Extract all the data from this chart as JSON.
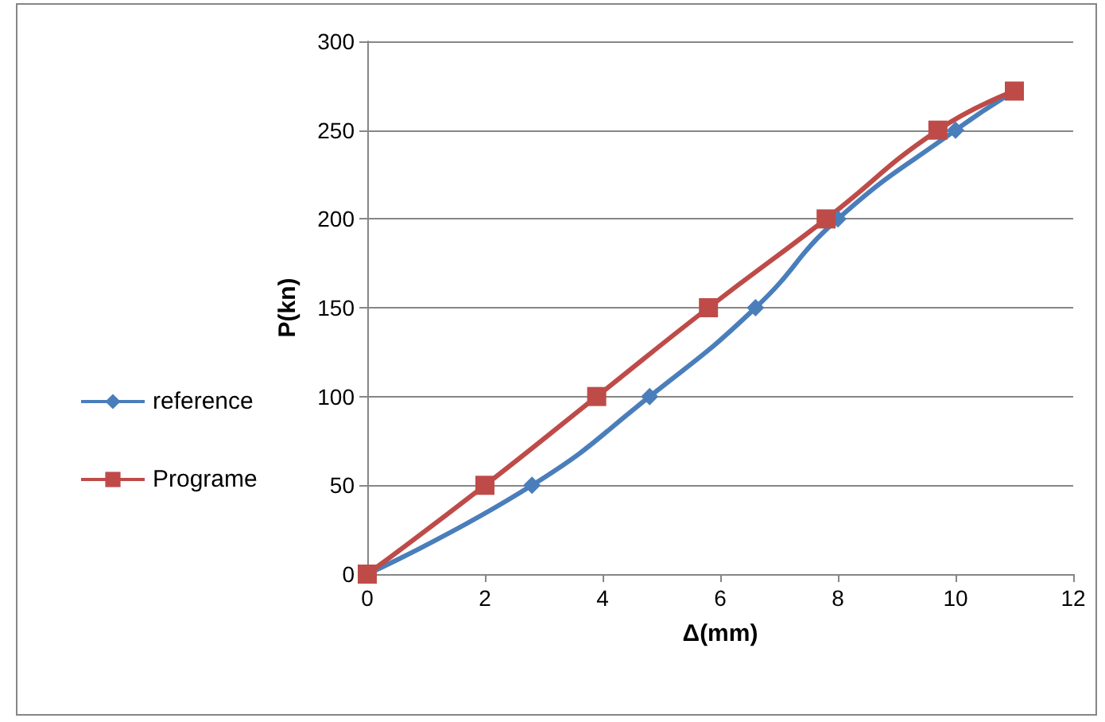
{
  "chart_data": {
    "type": "line",
    "xlabel": "Δ(mm)",
    "ylabel": "P(kn)",
    "xlim": [
      0,
      12
    ],
    "xticks": [
      0,
      2,
      4,
      6,
      8,
      10,
      12
    ],
    "ylim": [
      0,
      300
    ],
    "yticks": [
      0,
      50,
      100,
      150,
      200,
      250,
      300
    ],
    "grid": "y",
    "legend": "left",
    "series": [
      {
        "name": "reference",
        "color": "#4a7ebb",
        "marker": "diamond",
        "x": [
          0,
          2.8,
          4.8,
          6.6,
          8.0,
          10.0,
          11.0
        ],
        "values": [
          0,
          50,
          100,
          150,
          200,
          250,
          272
        ]
      },
      {
        "name": "Programe",
        "color": "#be4b48",
        "marker": "square",
        "x": [
          0,
          2.0,
          3.9,
          5.8,
          7.8,
          9.7,
          11.0
        ],
        "values": [
          0,
          50,
          100,
          150,
          200,
          250,
          272
        ]
      }
    ]
  }
}
